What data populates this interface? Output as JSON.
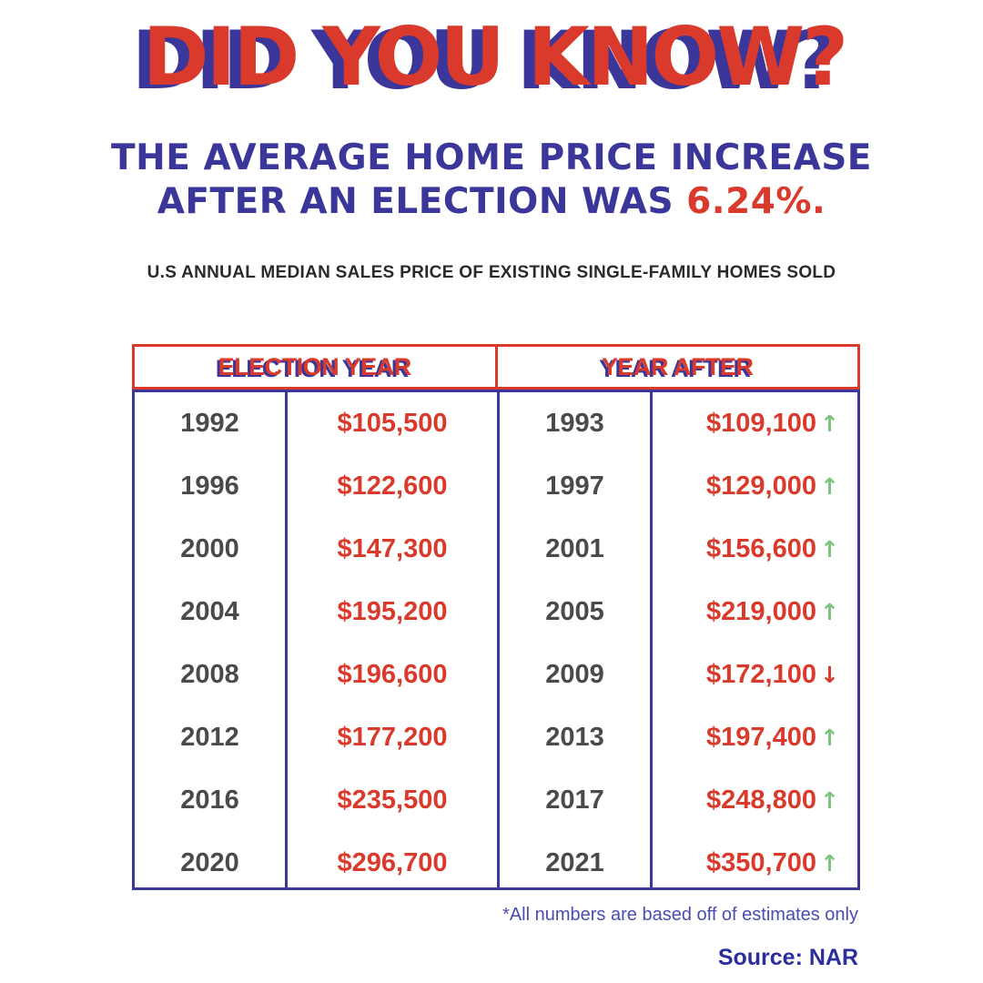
{
  "headline": "DID YOU KNOW?",
  "subhead": {
    "line1": "THE AVERAGE HOME PRICE INCREASE",
    "line2_prefix": "AFTER AN ELECTION WAS ",
    "line2_highlight": "6.24%."
  },
  "caption": "U.S ANNUAL MEDIAN SALES PRICE OF EXISTING SINGLE-FAMILY HOMES SOLD",
  "table": {
    "headers": [
      "ELECTION YEAR",
      "YEAR AFTER"
    ],
    "rows": [
      {
        "election_year": "1992",
        "election_price": "$105,500",
        "after_year": "1993",
        "after_price": "$109,100",
        "trend": "up"
      },
      {
        "election_year": "1996",
        "election_price": "$122,600",
        "after_year": "1997",
        "after_price": "$129,000",
        "trend": "up"
      },
      {
        "election_year": "2000",
        "election_price": "$147,300",
        "after_year": "2001",
        "after_price": "$156,600",
        "trend": "up"
      },
      {
        "election_year": "2004",
        "election_price": "$195,200",
        "after_year": "2005",
        "after_price": "$219,000",
        "trend": "up"
      },
      {
        "election_year": "2008",
        "election_price": "$196,600",
        "after_year": "2009",
        "after_price": "$172,100",
        "trend": "down"
      },
      {
        "election_year": "2012",
        "election_price": "$177,200",
        "after_year": "2013",
        "after_price": "$197,400",
        "trend": "up"
      },
      {
        "election_year": "2016",
        "election_price": "$235,500",
        "after_year": "2017",
        "after_price": "$248,800",
        "trend": "up"
      },
      {
        "election_year": "2020",
        "election_price": "$296,700",
        "after_year": "2021",
        "after_price": "$350,700",
        "trend": "up"
      }
    ]
  },
  "footnote": "*All numbers are based off of estimates only",
  "source": "Source: NAR",
  "colors": {
    "red": "#d93a2b",
    "blue": "#3b3699",
    "green_arrow": "#7cc47f",
    "year_gray": "#4a4a4a"
  },
  "icons": {
    "up": "arrow-up-icon",
    "down": "arrow-down-icon"
  }
}
